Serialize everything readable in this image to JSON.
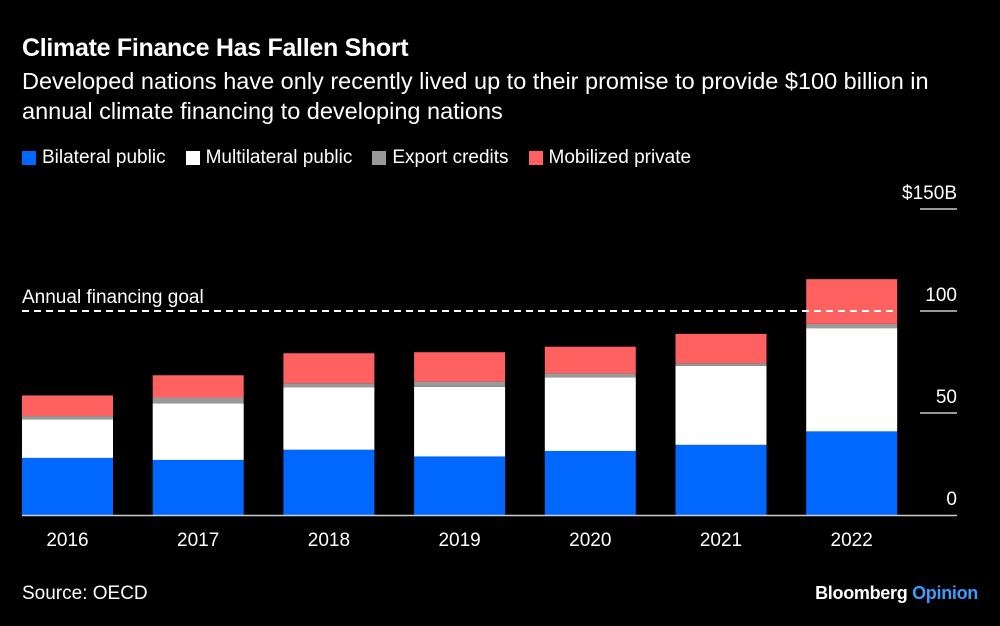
{
  "chart_data": {
    "type": "bar",
    "stacked": true,
    "title": "Climate Finance Has Fallen Short",
    "subtitle": "Developed nations have only recently lived up to their promise to provide $100 billion in annual climate financing to developing nations",
    "categories": [
      "2016",
      "2017",
      "2018",
      "2019",
      "2020",
      "2021",
      "2022"
    ],
    "series": [
      {
        "name": "Bilateral public",
        "color": "#0068ff",
        "values": [
          28.0,
          27.0,
          32.0,
          28.7,
          31.4,
          34.4,
          41.0
        ]
      },
      {
        "name": "Multilateral public",
        "color": "#ffffff",
        "values": [
          18.9,
          27.7,
          30.5,
          34.1,
          36.1,
          38.7,
          50.6
        ]
      },
      {
        "name": "Export credits",
        "color": "#999999",
        "values": [
          1.6,
          2.9,
          2.1,
          2.6,
          1.9,
          1.3,
          2.1
        ]
      },
      {
        "name": "Mobilized private",
        "color": "#ff6060",
        "values": [
          10.1,
          10.9,
          14.7,
          14.4,
          13.1,
          14.4,
          21.9
        ]
      }
    ],
    "ylim": [
      0,
      150
    ],
    "yticks": [
      {
        "value": 0,
        "label": "0"
      },
      {
        "value": 50,
        "label": "50"
      },
      {
        "value": 100,
        "label": "100"
      },
      {
        "value": 150,
        "label": "$150B"
      }
    ],
    "axis_side": "right",
    "legend_position": "top-left",
    "grid": false,
    "annotation": {
      "label": "Annual financing goal",
      "value": 100,
      "style": "dashed"
    }
  },
  "source": "Source: OECD",
  "brand": {
    "name": "Bloomberg",
    "suffix": "Opinion",
    "suffix_color": "#3d9bff"
  }
}
